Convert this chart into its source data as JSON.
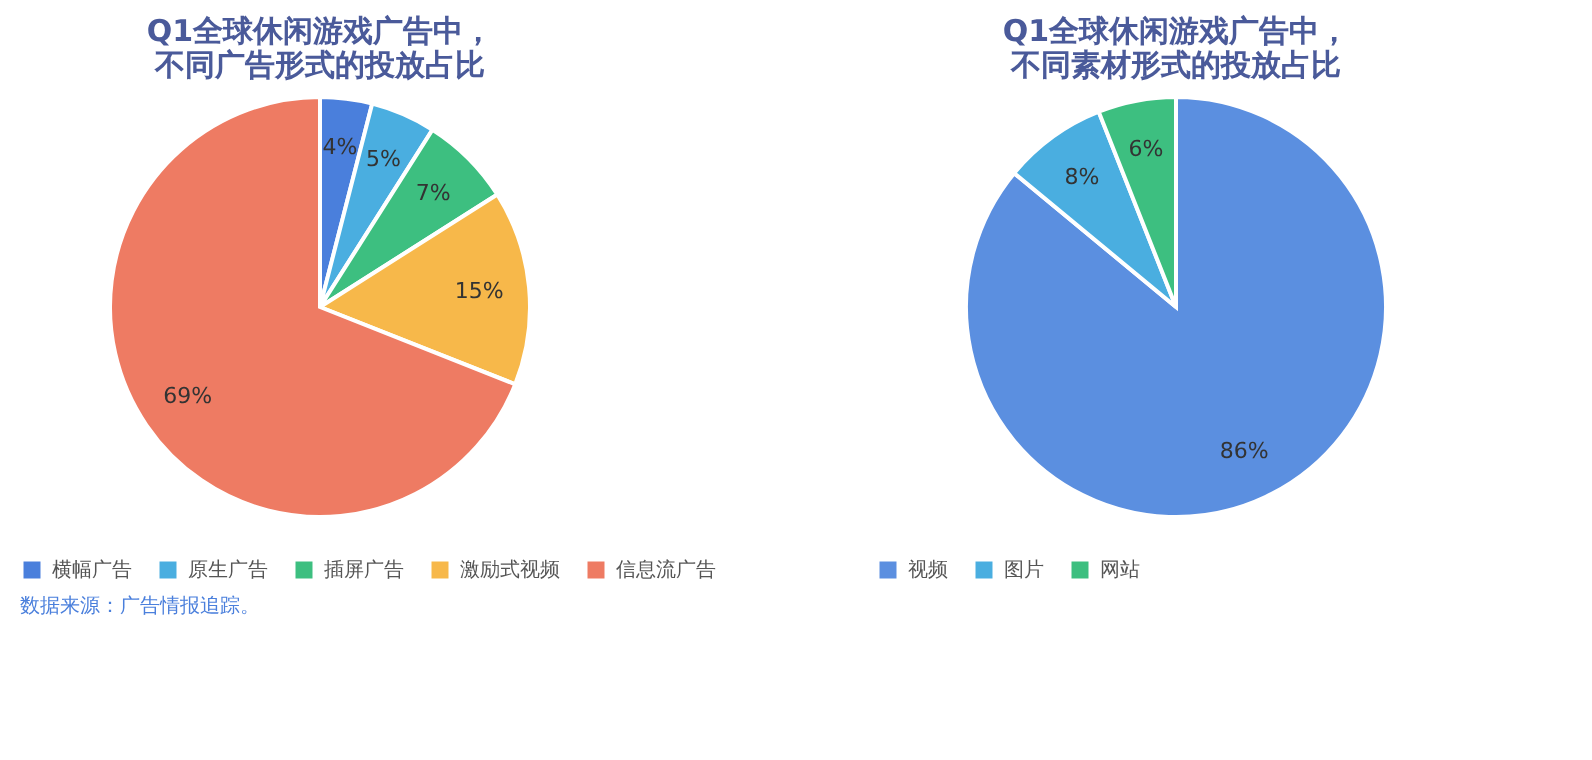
{
  "chart_data": [
    {
      "type": "pie",
      "title": "Q1全球休闲游戏广告中，不同广告形式的投放占比",
      "categories": [
        "横幅广告",
        "原生广告",
        "插屏广告",
        "激励式视频",
        "信息流广告"
      ],
      "values": [
        4,
        5,
        7,
        15,
        69
      ],
      "colors": [
        "#4a7fdc",
        "#4aaee0",
        "#3dbf80",
        "#f7b84a",
        "#ee7b63"
      ],
      "value_labels": [
        "4%",
        "5%",
        "7%",
        "15%",
        "69%"
      ],
      "legend": "bottom",
      "annotations": [
        "数据来源：广告情报追踪。"
      ]
    },
    {
      "type": "pie",
      "title": "Q1全球休闲游戏广告中，不同素材形式的投放占比",
      "categories": [
        "视频",
        "图片",
        "网站"
      ],
      "values": [
        86,
        8,
        6
      ],
      "colors": [
        "#5b8fe0",
        "#4aaee0",
        "#3dbf80"
      ],
      "value_labels": [
        "86%",
        "8%",
        "6%"
      ],
      "legend": "bottom"
    }
  ]
}
